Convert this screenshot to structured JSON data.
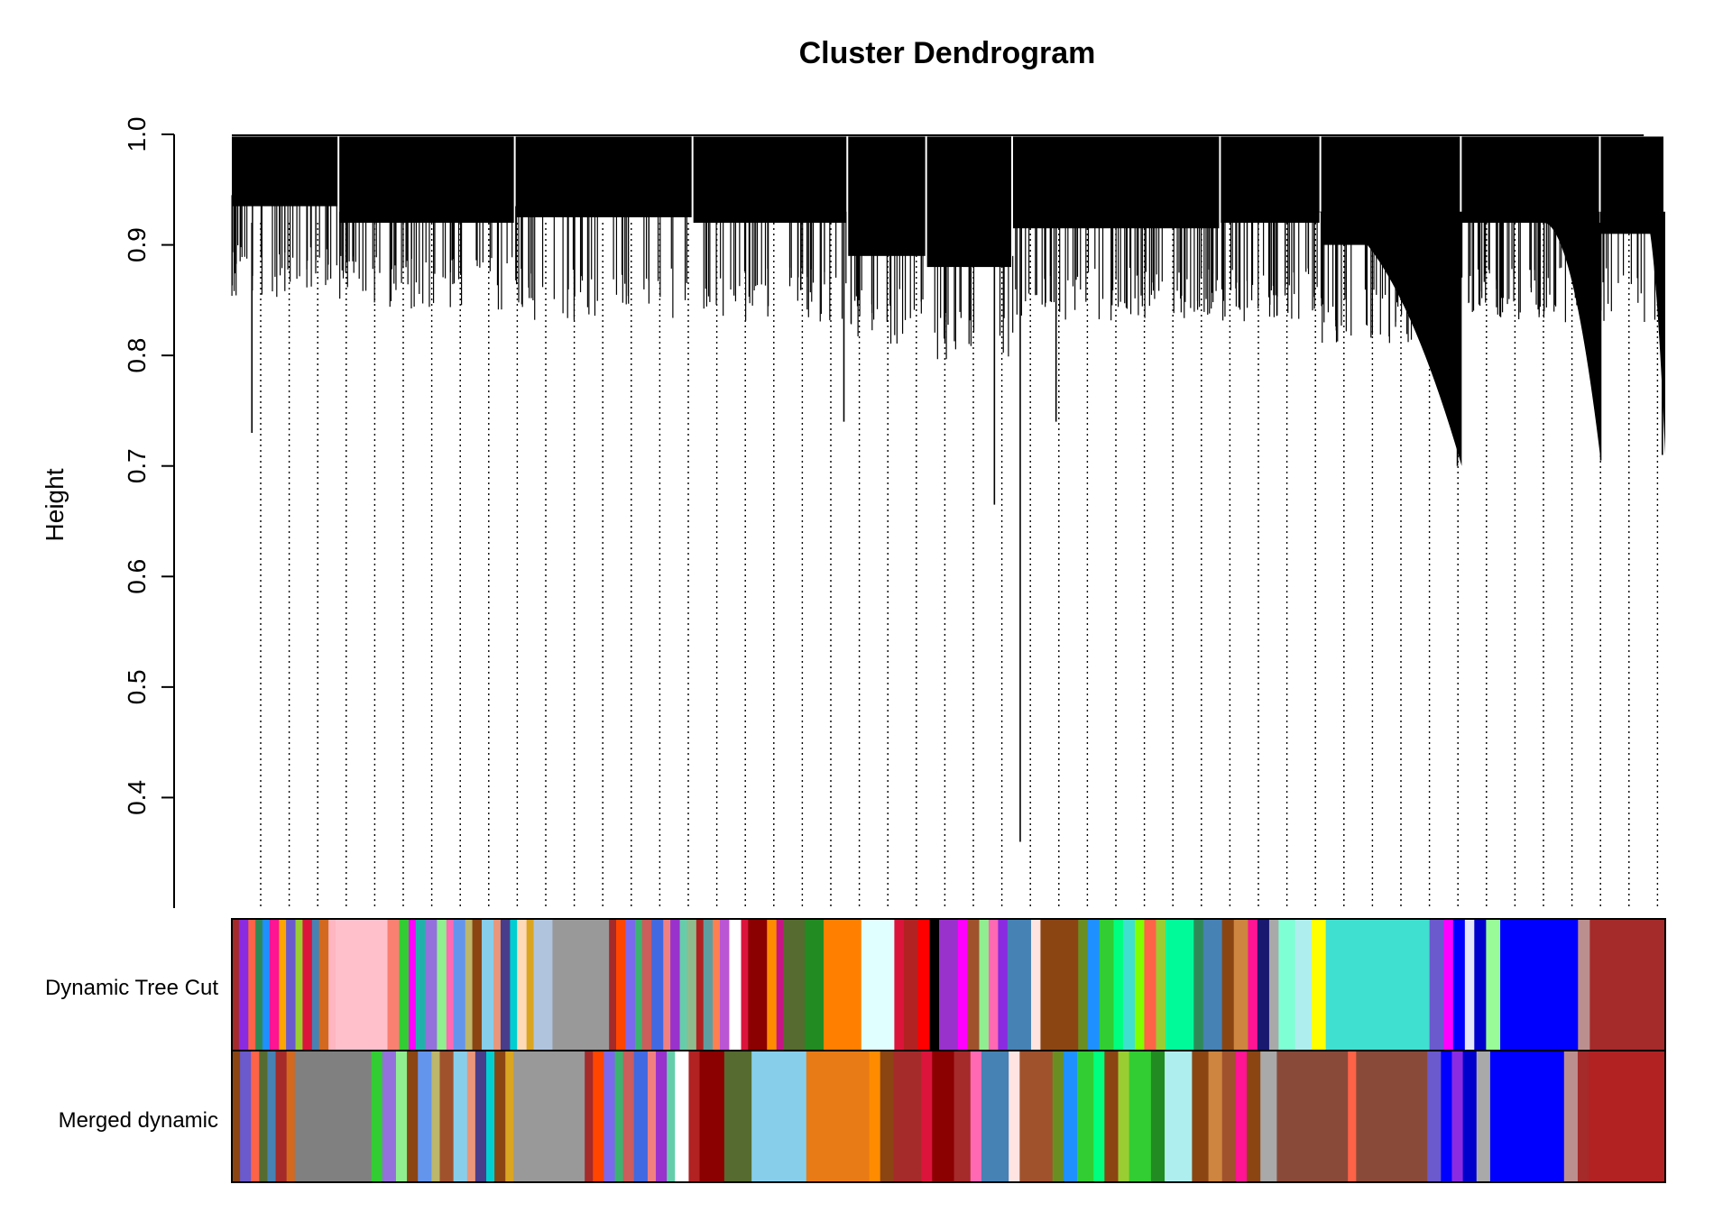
{
  "chart_data": {
    "type": "dendrogram",
    "title": "Cluster Dendrogram",
    "ylabel": "Height",
    "xlabel": "",
    "ylim": [
      0.3,
      1.0
    ],
    "yticks": [
      0.4,
      0.5,
      0.6,
      0.7,
      0.8,
      0.9,
      1.0
    ],
    "ytick_labels": [
      "0.4",
      "0.5",
      "0.6",
      "0.7",
      "0.8",
      "0.9",
      "1.0"
    ],
    "grid": false,
    "leaf_guides": "dotted",
    "merge_height_typical": 0.99,
    "notable_branch_bottoms": [
      0.73,
      0.74,
      0.665,
      0.36,
      0.74,
      0.7,
      0.705,
      0.71
    ],
    "color_rows": [
      {
        "label": "Dynamic Tree Cut",
        "segments": [
          [
            "#a52a2a",
            0.3
          ],
          [
            "#8a2be2",
            0.4
          ],
          [
            "#ff6347",
            0.3
          ],
          [
            "#2e8b57",
            0.3
          ],
          [
            "#1e90ff",
            0.3
          ],
          [
            "#ff1493",
            0.4
          ],
          [
            "#ffa500",
            0.3
          ],
          [
            "#6a5acd",
            0.4
          ],
          [
            "#9acd32",
            0.3
          ],
          [
            "#dc143c",
            0.4
          ],
          [
            "#4682b4",
            0.3
          ],
          [
            "#d2691e",
            0.4
          ],
          [
            "#ffb6c1",
            0.3
          ],
          [
            "#ffc0cb",
            2.2
          ],
          [
            "#fa8072",
            0.5
          ],
          [
            "#32cd32",
            0.4
          ],
          [
            "#ff00ff",
            0.3
          ],
          [
            "#20b2aa",
            0.4
          ],
          [
            "#9370db",
            0.5
          ],
          [
            "#90ee90",
            0.4
          ],
          [
            "#ff69b4",
            0.3
          ],
          [
            "#6495ed",
            0.5
          ],
          [
            "#bdb76b",
            0.3
          ],
          [
            "#8b4513",
            0.4
          ],
          [
            "#87ceeb",
            0.5
          ],
          [
            "#e9967a",
            0.3
          ],
          [
            "#483d8b",
            0.4
          ],
          [
            "#00ced1",
            0.3
          ],
          [
            "#ffdab9",
            0.4
          ],
          [
            "#daa520",
            0.3
          ],
          [
            "#b0c4de",
            0.8
          ],
          [
            "#999999",
            2.4
          ],
          [
            "#a52a2a",
            0.3
          ],
          [
            "#ff4500",
            0.4
          ],
          [
            "#7b68ee",
            0.4
          ],
          [
            "#3cb371",
            0.3
          ],
          [
            "#cd5c5c",
            0.4
          ],
          [
            "#4169e1",
            0.5
          ],
          [
            "#f08080",
            0.3
          ],
          [
            "#9932cc",
            0.4
          ],
          [
            "#66cdaa",
            0.3
          ],
          [
            "#8fbc8f",
            0.4
          ],
          [
            "#b22222",
            0.3
          ],
          [
            "#5f9ea0",
            0.4
          ],
          [
            "#ff7f50",
            0.3
          ],
          [
            "#ba55d3",
            0.4
          ],
          [
            "#ffffff",
            0.5
          ],
          [
            "#dc143c",
            0.3
          ],
          [
            "#8b0000",
            0.8
          ],
          [
            "#ff8c00",
            0.4
          ],
          [
            "#c71585",
            0.3
          ],
          [
            "#556b2f",
            0.9
          ],
          [
            "#228b22",
            0.8
          ],
          [
            "#ff8000",
            1.6
          ],
          [
            "#e0ffff",
            1.4
          ],
          [
            "#dc143c",
            0.4
          ],
          [
            "#b22222",
            0.6
          ],
          [
            "#ff0000",
            0.5
          ],
          [
            "#000000",
            0.4
          ],
          [
            "#9932cc",
            0.8
          ],
          [
            "#ff00ff",
            0.4
          ],
          [
            "#a0522d",
            0.5
          ],
          [
            "#90ee90",
            0.4
          ],
          [
            "#ff69b4",
            0.4
          ],
          [
            "#8a2be2",
            0.4
          ],
          [
            "#4682b4",
            1.0
          ],
          [
            "#ffe4e1",
            0.4
          ],
          [
            "#8b4513",
            1.6
          ],
          [
            "#6b8e23",
            0.4
          ],
          [
            "#1e90ff",
            0.5
          ],
          [
            "#32cd32",
            0.6
          ],
          [
            "#00ff7f",
            0.4
          ],
          [
            "#40e0d0",
            0.5
          ],
          [
            "#7fff00",
            0.4
          ],
          [
            "#ff6347",
            0.5
          ],
          [
            "#9acd32",
            0.4
          ],
          [
            "#00fa9a",
            1.2
          ],
          [
            "#2e8b57",
            0.4
          ],
          [
            "#4682b4",
            0.8
          ],
          [
            "#8b4513",
            0.5
          ],
          [
            "#cd853f",
            0.6
          ],
          [
            "#ff1493",
            0.4
          ],
          [
            "#191970",
            0.5
          ],
          [
            "#a9a9a9",
            0.4
          ],
          [
            "#7fffd4",
            0.7
          ],
          [
            "#afeeee",
            0.7
          ],
          [
            "#ffff00",
            0.6
          ],
          [
            "#40e0d0",
            4.4
          ],
          [
            "#6a5acd",
            0.6
          ],
          [
            "#ff00ff",
            0.4
          ],
          [
            "#0000ff",
            0.5
          ],
          [
            "#e6e6fa",
            0.4
          ],
          [
            "#0000cd",
            0.5
          ],
          [
            "#98fb98",
            0.6
          ],
          [
            "#0000ff",
            3.3
          ],
          [
            "#bc8f8f",
            0.5
          ],
          [
            "#a52a2a",
            3.2
          ]
        ]
      },
      {
        "label": "Merged dynamic",
        "segments": [
          [
            "#8b4513",
            0.3
          ],
          [
            "#6a5acd",
            0.4
          ],
          [
            "#ff6347",
            0.3
          ],
          [
            "#556b2f",
            0.3
          ],
          [
            "#4682b4",
            0.3
          ],
          [
            "#a52a2a",
            0.4
          ],
          [
            "#d2691e",
            0.3
          ],
          [
            "#808080",
            2.8
          ],
          [
            "#32cd32",
            0.4
          ],
          [
            "#9370db",
            0.5
          ],
          [
            "#90ee90",
            0.4
          ],
          [
            "#8b4513",
            0.4
          ],
          [
            "#6495ed",
            0.5
          ],
          [
            "#bdb76b",
            0.3
          ],
          [
            "#a0522d",
            0.5
          ],
          [
            "#87ceeb",
            0.5
          ],
          [
            "#e9967a",
            0.3
          ],
          [
            "#483d8b",
            0.4
          ],
          [
            "#00ced1",
            0.3
          ],
          [
            "#8b4513",
            0.4
          ],
          [
            "#daa520",
            0.3
          ],
          [
            "#999999",
            2.6
          ],
          [
            "#a52a2a",
            0.3
          ],
          [
            "#ff4500",
            0.4
          ],
          [
            "#7b68ee",
            0.4
          ],
          [
            "#3cb371",
            0.3
          ],
          [
            "#cd5c5c",
            0.4
          ],
          [
            "#4169e1",
            0.5
          ],
          [
            "#f08080",
            0.3
          ],
          [
            "#9932cc",
            0.4
          ],
          [
            "#66cdaa",
            0.3
          ],
          [
            "#ffffff",
            0.5
          ],
          [
            "#b22222",
            0.4
          ],
          [
            "#8b0000",
            0.9
          ],
          [
            "#556b2f",
            1.0
          ],
          [
            "#87ceeb",
            2.0
          ],
          [
            "#e87b15",
            2.3
          ],
          [
            "#ff8c00",
            0.4
          ],
          [
            "#8b4513",
            0.5
          ],
          [
            "#a52a2a",
            1.0
          ],
          [
            "#dc143c",
            0.4
          ],
          [
            "#8b0000",
            0.8
          ],
          [
            "#a52a2a",
            0.6
          ],
          [
            "#ff69b4",
            0.4
          ],
          [
            "#4682b4",
            1.0
          ],
          [
            "#ffe4e1",
            0.4
          ],
          [
            "#a0522d",
            1.2
          ],
          [
            "#6b8e23",
            0.4
          ],
          [
            "#1e90ff",
            0.5
          ],
          [
            "#32cd32",
            0.6
          ],
          [
            "#00ff7f",
            0.4
          ],
          [
            "#8b4513",
            0.5
          ],
          [
            "#9acd32",
            0.4
          ],
          [
            "#32cd32",
            0.8
          ],
          [
            "#228b22",
            0.5
          ],
          [
            "#afeeee",
            1.0
          ],
          [
            "#8b4513",
            0.6
          ],
          [
            "#cd853f",
            0.5
          ],
          [
            "#a0522d",
            0.5
          ],
          [
            "#ff1493",
            0.4
          ],
          [
            "#8b4513",
            0.5
          ],
          [
            "#a9a9a9",
            0.6
          ],
          [
            "#8a4a3a",
            2.6
          ],
          [
            "#ff6347",
            0.3
          ],
          [
            "#8a4a3a",
            2.6
          ],
          [
            "#6a5acd",
            0.5
          ],
          [
            "#0000ff",
            0.4
          ],
          [
            "#8a2be2",
            0.4
          ],
          [
            "#0000cd",
            0.5
          ],
          [
            "#a9a9a9",
            0.5
          ],
          [
            "#0000ff",
            2.7
          ],
          [
            "#bc8f8f",
            0.5
          ],
          [
            "#a52a2a",
            0.4
          ],
          [
            "#b22222",
            2.8
          ]
        ]
      }
    ]
  }
}
